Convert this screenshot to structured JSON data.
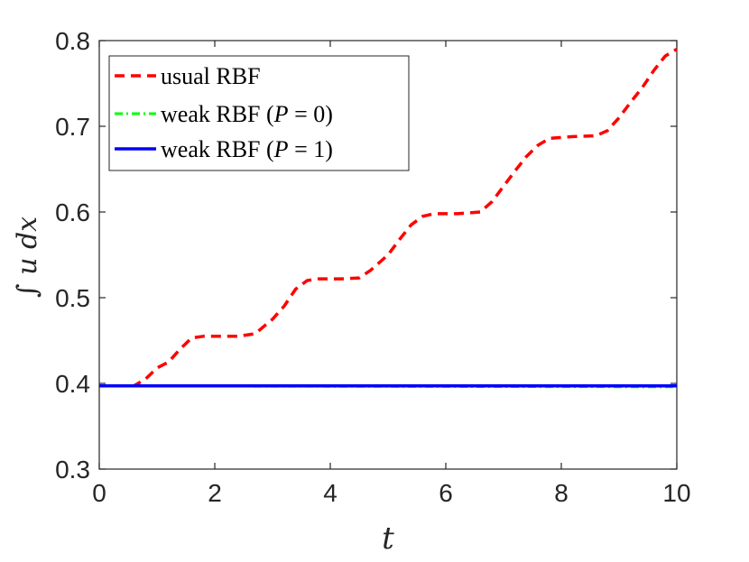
{
  "chart_data": {
    "type": "line",
    "xlabel": "t",
    "ylabel": "∫ u dx",
    "xlim": [
      0,
      10
    ],
    "ylim": [
      0.3,
      0.8
    ],
    "xticks": [
      "0",
      "2",
      "4",
      "6",
      "8",
      "10"
    ],
    "yticks": [
      "0.3",
      "0.4",
      "0.5",
      "0.6",
      "0.7",
      "0.8"
    ],
    "grid": false,
    "legend_position": "top-left",
    "series": [
      {
        "name": "usual RBF",
        "color": "#ff0000",
        "style": "dashed",
        "x": [
          0,
          0.6,
          0.8,
          1.0,
          1.2,
          1.4,
          1.6,
          1.8,
          2.0,
          2.4,
          2.7,
          3.0,
          3.2,
          3.4,
          3.6,
          3.8,
          4.2,
          4.5,
          4.7,
          5.0,
          5.2,
          5.4,
          5.6,
          5.8,
          6.2,
          6.6,
          6.8,
          7.0,
          7.2,
          7.4,
          7.6,
          7.8,
          8.2,
          8.6,
          8.8,
          9.0,
          9.2,
          9.4,
          9.6,
          9.8,
          10.0
        ],
        "y": [
          0.397,
          0.397,
          0.405,
          0.418,
          0.425,
          0.44,
          0.453,
          0.455,
          0.455,
          0.455,
          0.458,
          0.475,
          0.49,
          0.51,
          0.52,
          0.522,
          0.522,
          0.523,
          0.532,
          0.55,
          0.568,
          0.585,
          0.595,
          0.598,
          0.598,
          0.6,
          0.612,
          0.63,
          0.648,
          0.665,
          0.678,
          0.686,
          0.688,
          0.689,
          0.695,
          0.71,
          0.728,
          0.745,
          0.765,
          0.782,
          0.79
        ]
      },
      {
        "name": "weak RBF (P=0)",
        "color": "#00ff00",
        "style": "dashdot",
        "x": [
          0,
          10
        ],
        "y": [
          0.397,
          0.396
        ]
      },
      {
        "name": "weak RBF (P=1)",
        "color": "#0000ff",
        "style": "solid",
        "x": [
          0,
          10
        ],
        "y": [
          0.397,
          0.397
        ]
      }
    ],
    "legend": {
      "entries": [
        {
          "name_text": "usual RBF"
        },
        {
          "name_text": "weak RBF (",
          "math_var": "P",
          "math_rest": " = 0)"
        },
        {
          "name_text": "weak RBF (",
          "math_var": "P",
          "math_rest": " = 1)"
        }
      ]
    }
  }
}
